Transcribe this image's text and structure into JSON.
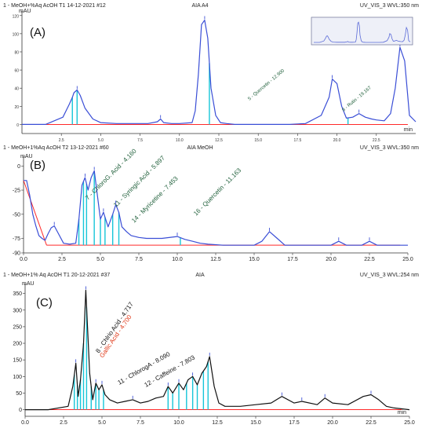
{
  "chart_data": [
    {
      "type": "line",
      "panel_label": "(A)",
      "header_left": "1 - MeOH+%Aq AcOH T1 14-12-2021 #12",
      "header_mid": "AIA A4",
      "header_right": "UV_VIS_3 WVL:350 nm",
      "y_unit": "mAU",
      "x_unit": "min",
      "xlim": [
        0,
        25
      ],
      "ylim": [
        -10,
        125
      ],
      "y_ticks": [
        0,
        20,
        40,
        60,
        80,
        100,
        120
      ],
      "x_ticks": [
        2.5,
        5.0,
        7.5,
        10.0,
        12.5,
        15.0,
        17.5,
        20.0,
        22.5
      ],
      "series": [
        {
          "color": "#3a4ed6",
          "x": [
            0,
            1.5,
            2.6,
            3.0,
            3.2,
            3.3,
            3.5,
            3.7,
            4.0,
            4.5,
            5.0,
            6.0,
            7.0,
            8.0,
            8.6,
            8.8,
            9.0,
            9.5,
            10.0,
            10.8,
            11.0,
            11.2,
            11.4,
            11.6,
            11.8,
            12.0,
            12.3,
            12.6,
            13.0,
            13.5,
            14.0,
            15.0,
            16.0,
            17.0,
            18.0,
            19.0,
            19.5,
            19.7,
            20.0,
            20.3,
            20.6,
            21.0,
            21.4,
            21.8,
            22.2,
            22.5,
            23.0,
            23.4,
            23.7,
            24.0,
            24.3,
            24.6,
            25.0
          ],
          "y": [
            0,
            0,
            8,
            22,
            30,
            35,
            38,
            32,
            18,
            6,
            2,
            1,
            1,
            1,
            3,
            6,
            2,
            1,
            1,
            2,
            15,
            55,
            110,
            115,
            95,
            40,
            10,
            2,
            1,
            0,
            0,
            0,
            0,
            0,
            1,
            10,
            30,
            50,
            45,
            20,
            7,
            8,
            12,
            8,
            6,
            5,
            4,
            12,
            40,
            85,
            70,
            10,
            3
          ]
        }
      ],
      "baseline_color": "#ff2a2a",
      "marker_color": "#16c5d8",
      "markers_x": [
        3.2,
        3.5,
        11.9,
        13.5,
        20.7
      ],
      "annotations": [
        "5 - Quercetin - 12.900",
        "8 - Rutin - 19.167"
      ],
      "inset": true
    },
    {
      "type": "line",
      "panel_label": "(B)",
      "header_left": "1 - MeOH+1%Aq AcOH T2 13-12-2021 #60",
      "header_mid": "AIA MeOH",
      "header_right": "UV_VIS_3 WVL:350 nm",
      "y_unit": "mAU",
      "x_unit": "",
      "xlim": [
        0,
        25
      ],
      "ylim": [
        -90,
        10
      ],
      "y_ticks": [
        0,
        -25,
        -50,
        -75,
        -90
      ],
      "x_ticks": [
        0.0,
        2.5,
        5.0,
        7.5,
        10.0,
        12.5,
        15.0,
        17.5,
        20.0,
        22.5,
        25.0
      ],
      "series": [
        {
          "color": "#3a4ed6",
          "x": [
            0,
            0.2,
            0.4,
            0.6,
            0.8,
            1.0,
            1.2,
            1.4,
            1.6,
            1.8,
            2.0,
            2.2,
            2.6,
            3.0,
            3.4,
            3.6,
            3.8,
            4.0,
            4.2,
            4.4,
            4.6,
            4.8,
            5.0,
            5.2,
            5.5,
            5.8,
            6.0,
            6.2,
            6.4,
            6.7,
            7.0,
            7.5,
            8.0,
            9.0,
            10.0,
            10.5,
            11.0,
            11.5,
            12.0,
            13.0,
            14.0,
            15.0,
            15.5,
            16.0,
            16.5,
            17.0,
            18.0,
            19.0,
            20.0,
            20.5,
            21.0,
            22.0,
            22.5,
            23.0,
            24.0,
            25.0
          ],
          "y": [
            -15,
            -15,
            -30,
            -50,
            -62,
            -72,
            -75,
            -77,
            -70,
            -64,
            -62,
            -68,
            -80,
            -81,
            -80,
            -55,
            -20,
            -12,
            -25,
            -12,
            -5,
            -30,
            -55,
            -48,
            -63,
            -50,
            -40,
            -48,
            -63,
            -68,
            -72,
            -74,
            -75,
            -75,
            -73,
            -76,
            -78,
            -80,
            -81,
            -82,
            -82,
            -82,
            -78,
            -68,
            -75,
            -82,
            -82,
            -82,
            -82,
            -78,
            -82,
            -82,
            -78,
            -82,
            -82,
            -82
          ]
        }
      ],
      "baseline_color": "#ff2a2a",
      "marker_color": "#16c5d8",
      "markers_x": [
        3.6,
        3.9,
        4.1,
        4.6,
        5.0,
        5.3,
        5.8,
        6.2,
        10.2
      ],
      "annotations": [
        "7 - ChloroG. Acid - 4.160",
        "11 - Syringic Acid - 5.897",
        "14 - Myricetine - 7.453",
        "16 - Quercetin - 11.163"
      ],
      "inset": false
    },
    {
      "type": "line",
      "panel_label": "(C)",
      "header_left": "1 - MeOH+1% Aq AcOH T1 20-12-2021 #37",
      "header_mid": "AIA",
      "header_right": "UV_VIS_3 WVL:254 nm",
      "y_unit": "mAU",
      "x_unit": "min",
      "xlim": [
        0,
        25
      ],
      "ylim": [
        -20,
        380
      ],
      "y_ticks": [
        0,
        50,
        100,
        150,
        200,
        250,
        300,
        350
      ],
      "x_ticks": [
        0.0,
        2.5,
        5.0,
        7.5,
        10.0,
        12.5,
        15.0,
        17.5,
        20.0,
        22.5,
        25.0
      ],
      "series": [
        {
          "color": "#111111",
          "x": [
            0,
            1.5,
            2.8,
            3.1,
            3.3,
            3.45,
            3.6,
            3.8,
            3.95,
            4.2,
            4.4,
            4.6,
            4.8,
            5.0,
            5.2,
            5.5,
            6.0,
            6.5,
            7.0,
            7.5,
            8.0,
            8.5,
            9.0,
            9.3,
            9.6,
            10.0,
            10.3,
            10.6,
            10.9,
            11.2,
            11.5,
            11.8,
            12.0,
            12.3,
            12.6,
            13.0,
            14.0,
            15.0,
            16.0,
            16.7,
            17.5,
            18.0,
            19.0,
            19.5,
            20.0,
            21.0,
            22.0,
            22.5,
            23.0,
            23.5,
            24.0,
            25.0
          ],
          "y": [
            0,
            0,
            10,
            70,
            140,
            40,
            90,
            200,
            360,
            110,
            30,
            80,
            60,
            75,
            45,
            30,
            20,
            25,
            30,
            20,
            25,
            35,
            40,
            70,
            50,
            80,
            60,
            90,
            100,
            75,
            110,
            130,
            160,
            70,
            20,
            10,
            10,
            15,
            20,
            40,
            20,
            25,
            15,
            35,
            20,
            15,
            40,
            45,
            30,
            10,
            5,
            0
          ]
        }
      ],
      "baseline_color": "#ff2a2a",
      "marker_color": "#16c5d8",
      "markers_x": [
        3.2,
        3.4,
        3.6,
        3.8,
        4.0,
        4.3,
        4.6,
        4.8,
        5.1,
        9.3,
        9.6,
        10.0,
        10.5,
        10.9,
        11.2,
        11.6,
        11.9
      ],
      "annotations": [
        "8 - Chlrio Acid - 4.717",
        "Gallic Acid - 4.700",
        "11 - ChlorogA - 8.090",
        "12 - Caffeine - 7.803"
      ],
      "inset": false
    }
  ]
}
